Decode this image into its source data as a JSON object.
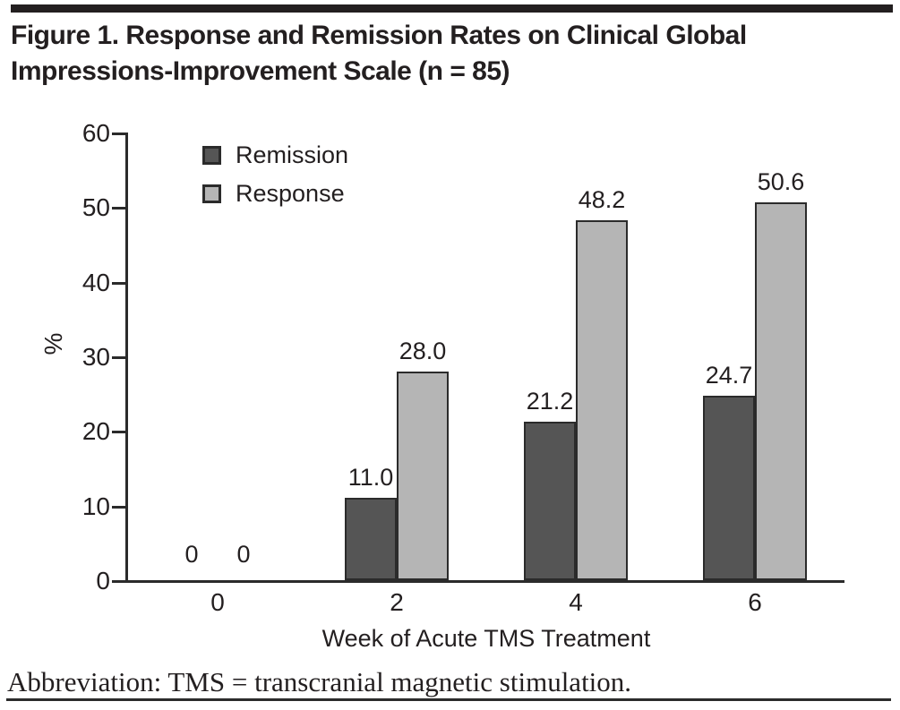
{
  "figure": {
    "title_lines": [
      "Figure 1. Response and Remission Rates on Clinical Global",
      "Impressions-Improvement Scale (n = 85)"
    ],
    "footnote": "Abbreviation: TMS = transcranial magnetic stimulation."
  },
  "chart_data": {
    "type": "bar",
    "title": "Figure 1. Response and Remission Rates on Clinical Global Impressions-Improvement Scale (n = 85)",
    "categories": [
      "0",
      "2",
      "4",
      "6"
    ],
    "series": [
      {
        "name": "Remission",
        "values": [
          0,
          11.0,
          21.2,
          24.7
        ],
        "color": "#555555"
      },
      {
        "name": "Response",
        "values": [
          0,
          28.0,
          48.2,
          50.6
        ],
        "color": "#b5b5b5"
      }
    ],
    "value_labels": [
      [
        "0",
        "11.0",
        "21.2",
        "24.7"
      ],
      [
        "0",
        "28.0",
        "48.2",
        "50.6"
      ]
    ],
    "xlabel": "Week of Acute TMS Treatment",
    "ylabel": "%",
    "ylim": [
      0,
      60
    ],
    "yticks": [
      0,
      10,
      20,
      30,
      40,
      50,
      60
    ],
    "grid": false,
    "legend_position": "upper-left-inside",
    "axis_color": "#2b2b2b",
    "bar_border_color": "#2b2b2b"
  }
}
